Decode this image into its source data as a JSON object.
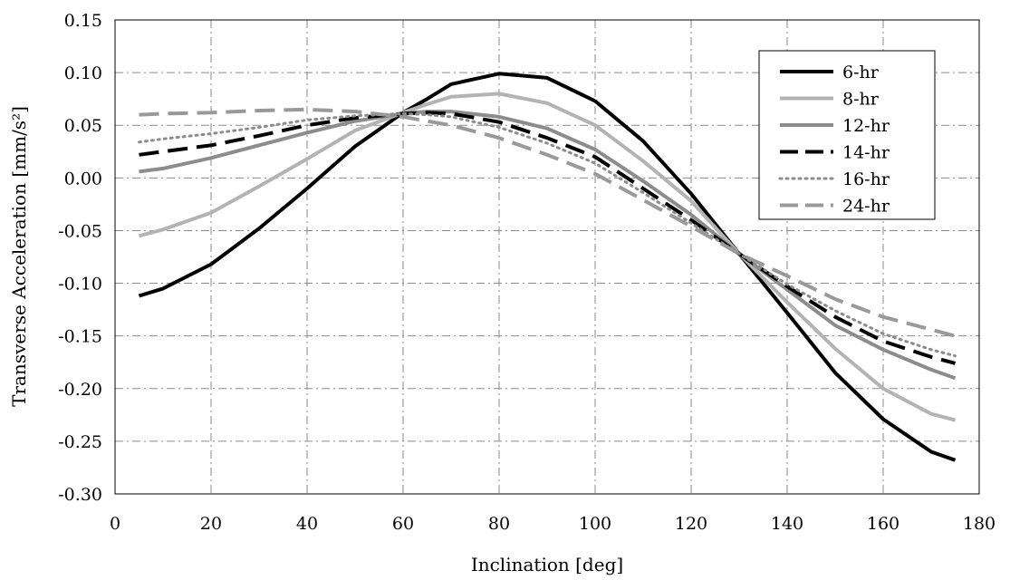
{
  "chart_data": {
    "type": "line",
    "title": "",
    "xlabel": "Inclination [deg]",
    "ylabel": "Transverse Acceleration [mm/s²]",
    "xlim": [
      0,
      180
    ],
    "ylim": [
      -0.3,
      0.15
    ],
    "xticks": [
      0,
      20,
      40,
      60,
      80,
      100,
      120,
      140,
      160,
      180
    ],
    "yticks": [
      -0.3,
      -0.25,
      -0.2,
      -0.15,
      -0.1,
      -0.05,
      0.0,
      0.05,
      0.1,
      0.15
    ],
    "grid": true,
    "legend_position": "top-right",
    "x": [
      5,
      10,
      20,
      30,
      40,
      50,
      60,
      65,
      70,
      80,
      90,
      100,
      110,
      120,
      130,
      140,
      150,
      160,
      170,
      175
    ],
    "series": [
      {
        "name": "6-hr",
        "color": "#000000",
        "dash": "solid",
        "values": [
          -0.112,
          -0.105,
          -0.082,
          -0.048,
          -0.01,
          0.03,
          0.062,
          0.075,
          0.089,
          0.099,
          0.095,
          0.073,
          0.035,
          -0.015,
          -0.072,
          -0.128,
          -0.185,
          -0.229,
          -0.26,
          -0.268
        ]
      },
      {
        "name": "8-hr",
        "color": "#b3b3b3",
        "dash": "solid",
        "values": [
          -0.055,
          -0.049,
          -0.033,
          -0.008,
          0.018,
          0.045,
          0.062,
          0.07,
          0.077,
          0.08,
          0.071,
          0.05,
          0.016,
          -0.022,
          -0.072,
          -0.118,
          -0.162,
          -0.2,
          -0.224,
          -0.23
        ]
      },
      {
        "name": "12-hr",
        "color": "#8c8c8c",
        "dash": "solid",
        "values": [
          0.006,
          0.009,
          0.019,
          0.031,
          0.043,
          0.054,
          0.061,
          0.063,
          0.063,
          0.058,
          0.047,
          0.027,
          -0.003,
          -0.035,
          -0.072,
          -0.106,
          -0.14,
          -0.163,
          -0.182,
          -0.19
        ]
      },
      {
        "name": "14-hr",
        "color": "#000000",
        "dash": "long",
        "values": [
          0.022,
          0.025,
          0.031,
          0.04,
          0.05,
          0.057,
          0.061,
          0.062,
          0.061,
          0.053,
          0.038,
          0.02,
          -0.01,
          -0.04,
          -0.072,
          -0.103,
          -0.132,
          -0.155,
          -0.17,
          -0.176
        ]
      },
      {
        "name": "16-hr",
        "color": "#8c8c8c",
        "dash": "dotted",
        "values": [
          0.034,
          0.037,
          0.042,
          0.048,
          0.055,
          0.059,
          0.061,
          0.06,
          0.058,
          0.048,
          0.033,
          0.014,
          -0.014,
          -0.043,
          -0.072,
          -0.101,
          -0.126,
          -0.148,
          -0.163,
          -0.169
        ]
      },
      {
        "name": "24-hr",
        "color": "#999999",
        "dash": "long",
        "values": [
          0.06,
          0.061,
          0.062,
          0.064,
          0.065,
          0.063,
          0.058,
          0.054,
          0.05,
          0.038,
          0.022,
          0.004,
          -0.021,
          -0.046,
          -0.072,
          -0.093,
          -0.115,
          -0.132,
          -0.144,
          -0.15
        ]
      }
    ]
  }
}
